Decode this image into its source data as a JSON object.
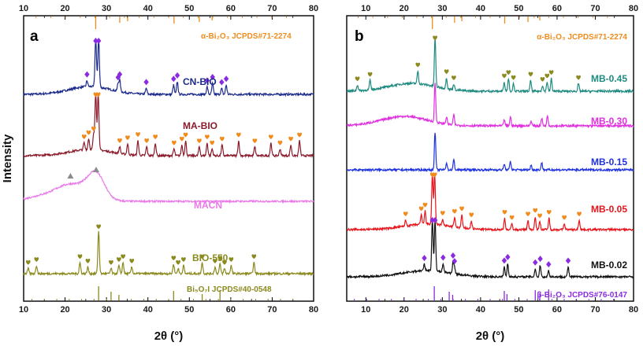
{
  "chart_data": [
    {
      "panel": "a",
      "type": "line",
      "xlabel": "2θ (°)",
      "ylabel": "Intensity",
      "xlim": [
        10,
        80
      ],
      "xticks": [
        10,
        20,
        30,
        40,
        50,
        60,
        70,
        80
      ],
      "top_reference": {
        "name": "α-Bi2O3",
        "label": "α-Bi₂O₃  JCPDS#71-2274",
        "color": "#f08c1e",
        "peaks": [
          27.4,
          33.2,
          35.1,
          46.3,
          52.4,
          55.5
        ]
      },
      "bottom_reference": {
        "name": "Bi5O7I",
        "label": "Bi₅O₇I  JCPDS#40-0548",
        "color": "#8a8a1e",
        "peaks": [
          28.1,
          31.1,
          33.0,
          46.2,
          53.1,
          57.4
        ]
      },
      "series": [
        {
          "name": "CN-BIO",
          "color": "#1c2a8c",
          "marker": "diamond",
          "marker_color": "#8a2be2",
          "peaks": [
            25.3,
            27.4,
            28.1,
            32.8,
            33.2,
            39.6,
            46.2,
            47.1,
            54.3,
            55.6,
            57.8,
            58.9
          ]
        },
        {
          "name": "MA-BIO",
          "color": "#8b1a2b",
          "marker": "heart",
          "marker_color": "#f08c1e",
          "peaks": [
            24.6,
            25.7,
            26.9,
            27.4,
            28.0,
            33.2,
            35.1,
            37.6,
            39.7,
            41.8,
            46.3,
            48.2,
            49.1,
            52.4,
            54.3,
            55.5,
            57.9,
            61.9,
            65.8,
            69.7,
            71.9,
            74.5,
            76.6
          ]
        },
        {
          "name": "MACN",
          "color": "#e879e8",
          "marker": "triangle",
          "marker_color": "#8c8c8c",
          "peaks": [
            21.3,
            27.5
          ]
        },
        {
          "name": "BIO-550",
          "color": "#8a8a1e",
          "marker": "heart",
          "marker_color": "#8a8a1e",
          "peaks": [
            11.1,
            13.1,
            23.6,
            25.5,
            28.1,
            31.1,
            33.0,
            34.0,
            36.1,
            46.2,
            47.3,
            48.6,
            53.1,
            56.2,
            57.4,
            58.5,
            60.1,
            65.6
          ]
        }
      ]
    },
    {
      "panel": "b",
      "type": "line",
      "xlabel": "2θ (°)",
      "xlim": [
        5,
        80
      ],
      "xticks": [
        10,
        20,
        30,
        40,
        50,
        60,
        70,
        80
      ],
      "top_reference": {
        "name": "α-Bi2O3",
        "label": "α-Bi₂O₃  JCPDS#71-2274",
        "color": "#f08c1e",
        "peaks": [
          27.4,
          33.2,
          35.1,
          46.3,
          52.4,
          55.5
        ]
      },
      "bottom_reference": {
        "name": "β-Bi2O3",
        "label": "β-Bi₂O₃  JCPDS#76-0147",
        "color": "#8a2be2",
        "peaks": [
          27.9,
          31.8,
          32.7,
          46.2,
          46.9,
          54.3,
          55.5,
          57.8
        ]
      },
      "series": [
        {
          "name": "MB-0.45",
          "color": "#1f8a80",
          "marker": "heart",
          "marker_color": "#8a8a1e",
          "peaks": [
            7.8,
            11.1,
            23.6,
            28.1,
            31.1,
            33.0,
            46.2,
            47.3,
            48.6,
            53.1,
            56.2,
            57.4,
            58.5,
            65.6
          ]
        },
        {
          "name": "MB-0.30",
          "color": "#e030e0",
          "marker": "none",
          "marker_color": "#e030e0",
          "peaks": [
            28.1,
            31.1,
            33.0,
            46.2,
            47.8,
            53.2,
            56.0,
            57.5
          ]
        },
        {
          "name": "MB-0.15",
          "color": "#1f32e0",
          "marker": "none",
          "marker_color": "#1f32e0",
          "peaks": [
            28.1,
            31.1,
            33.0,
            46.2,
            47.8,
            53.2,
            56.0
          ]
        },
        {
          "name": "MB-0.05",
          "color": "#e8141c",
          "marker": "heart",
          "marker_color": "#f08c1e",
          "peaks": [
            20.4,
            24.5,
            25.5,
            27.4,
            28.0,
            30.1,
            33.2,
            35.1,
            37.6,
            46.3,
            48.2,
            52.4,
            54.3,
            55.5,
            57.9,
            61.9,
            65.8
          ]
        },
        {
          "name": "MB-0.02",
          "color": "#111111",
          "marker": "diamond",
          "marker_color": "#8a2be2",
          "peaks": [
            25.3,
            27.4,
            28.1,
            30.2,
            32.8,
            33.2,
            46.2,
            47.1,
            54.3,
            55.6,
            57.8,
            62.9
          ]
        }
      ]
    }
  ]
}
